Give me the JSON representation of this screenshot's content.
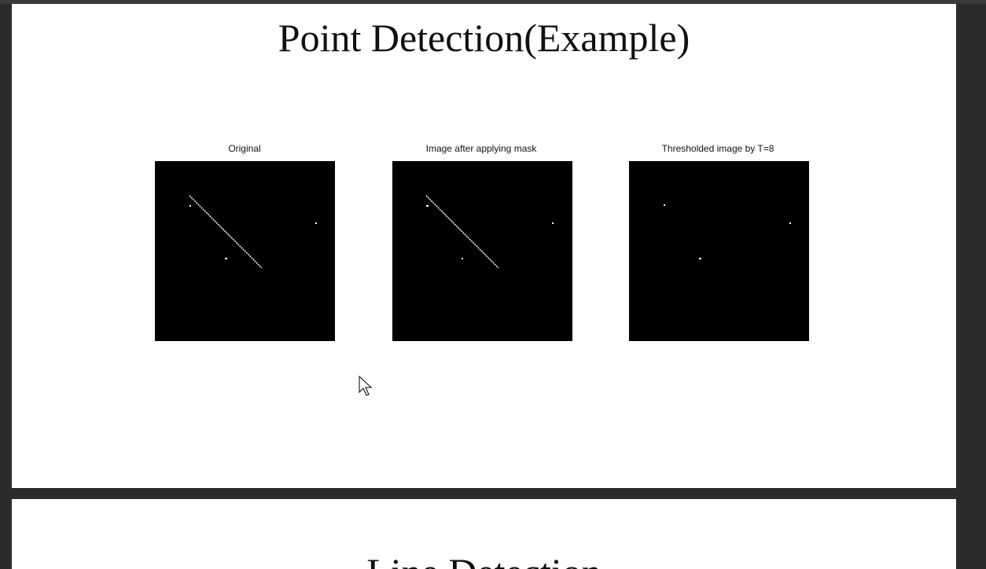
{
  "slides": [
    {
      "title": "Point Detection(Example)",
      "figures": [
        {
          "caption": "Original"
        },
        {
          "caption": "Image after applying mask"
        },
        {
          "caption": "Thresholded image by T=8"
        }
      ]
    },
    {
      "title": "Line Detection"
    }
  ]
}
